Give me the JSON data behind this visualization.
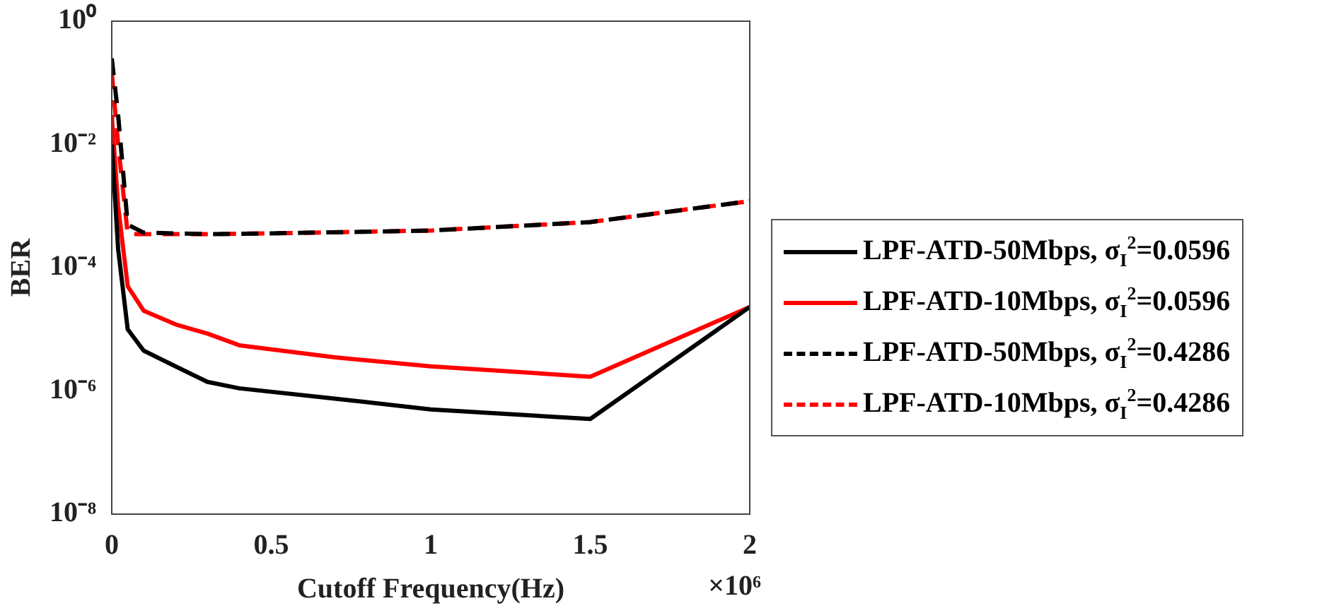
{
  "chart_data": {
    "type": "line",
    "xlabel": "Cutoff Frequency(Hz)",
    "ylabel": "BER",
    "log": "y",
    "grid": false,
    "legend": "right",
    "marker": "none",
    "xlim": [
      0,
      2
    ],
    "xticks": [
      0,
      0.5,
      1,
      1.5,
      2
    ],
    "ylim": [
      1e-08,
      1
    ],
    "yticks": [
      {
        "value": 1e-08,
        "label": "10⁻⁸"
      },
      {
        "value": 1e-06,
        "label": "10⁻⁶"
      },
      {
        "value": 0.0001,
        "label": "10⁻⁴"
      },
      {
        "value": 0.01,
        "label": "10⁻²"
      },
      {
        "value": 1,
        "label": "10⁰"
      }
    ],
    "annotations": [
      "×10⁶"
    ],
    "series": [
      {
        "name": "LPF-ATD-50Mbps,  σ$_{I}$$^{2}$=0.0596",
        "color": "#000000",
        "line_style": "solid",
        "x": [
          0,
          0.02,
          0.05,
          0.1,
          0.2,
          0.3,
          0.4,
          0.7,
          1,
          1.5,
          2
        ],
        "values": [
          0.01,
          0.0002,
          1e-05,
          4.5e-06,
          2.5e-06,
          1.4e-06,
          1.1e-06,
          7.5e-07,
          5e-07,
          3.5e-07,
          2.3e-05
        ]
      },
      {
        "name": "LPF-ATD-10Mbps,  σ$_{I}$$^{2}$=0.0596",
        "color": "#ff0000",
        "line_style": "solid",
        "x": [
          0,
          0.02,
          0.05,
          0.1,
          0.2,
          0.3,
          0.4,
          0.7,
          1,
          1.5,
          2
        ],
        "values": [
          0.03,
          0.001,
          5e-05,
          2e-05,
          1.2e-05,
          8.5e-06,
          5.5e-06,
          3.5e-06,
          2.5e-06,
          1.7e-06,
          2.3e-05
        ]
      },
      {
        "name": "LPF-ATD-50Mbps,  σ$_{I}$$^{2}$=0.4286",
        "color": "#000000",
        "line_style": "dashed",
        "x": [
          0,
          0.02,
          0.05,
          0.1,
          0.3,
          0.5,
          1,
          1.5,
          2
        ],
        "values": [
          0.25,
          0.03,
          0.0005,
          0.00037,
          0.00035,
          0.00036,
          0.0004,
          0.00055,
          0.0012
        ]
      },
      {
        "name": "LPF-ATD-10Mbps,  σ$_{I}$$^{2}$=0.4286",
        "color": "#ff0000",
        "line_style": "dashed",
        "x": [
          0,
          0.02,
          0.05,
          0.1,
          0.3,
          0.5,
          1,
          1.5,
          2
        ],
        "values": [
          0.15,
          0.01,
          0.00035,
          0.00035,
          0.00035,
          0.00036,
          0.0004,
          0.00055,
          0.0012
        ]
      }
    ]
  }
}
